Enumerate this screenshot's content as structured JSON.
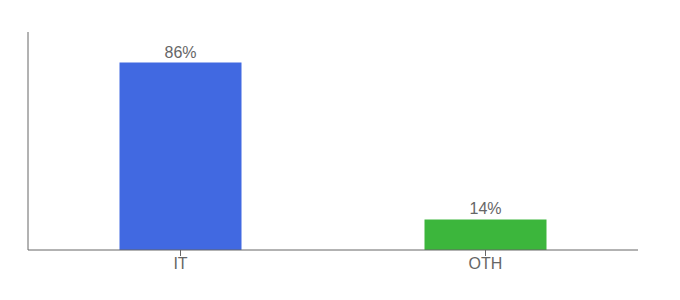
{
  "chart_data": {
    "type": "bar",
    "categories": [
      "IT",
      "OTH"
    ],
    "values": [
      86,
      14
    ],
    "value_labels": [
      "86%",
      "14%"
    ],
    "colors": [
      "#4169e1",
      "#3cb63c"
    ],
    "ylim": [
      0,
      100
    ],
    "data_labels": true,
    "tick_labels": "x",
    "grid": false
  }
}
